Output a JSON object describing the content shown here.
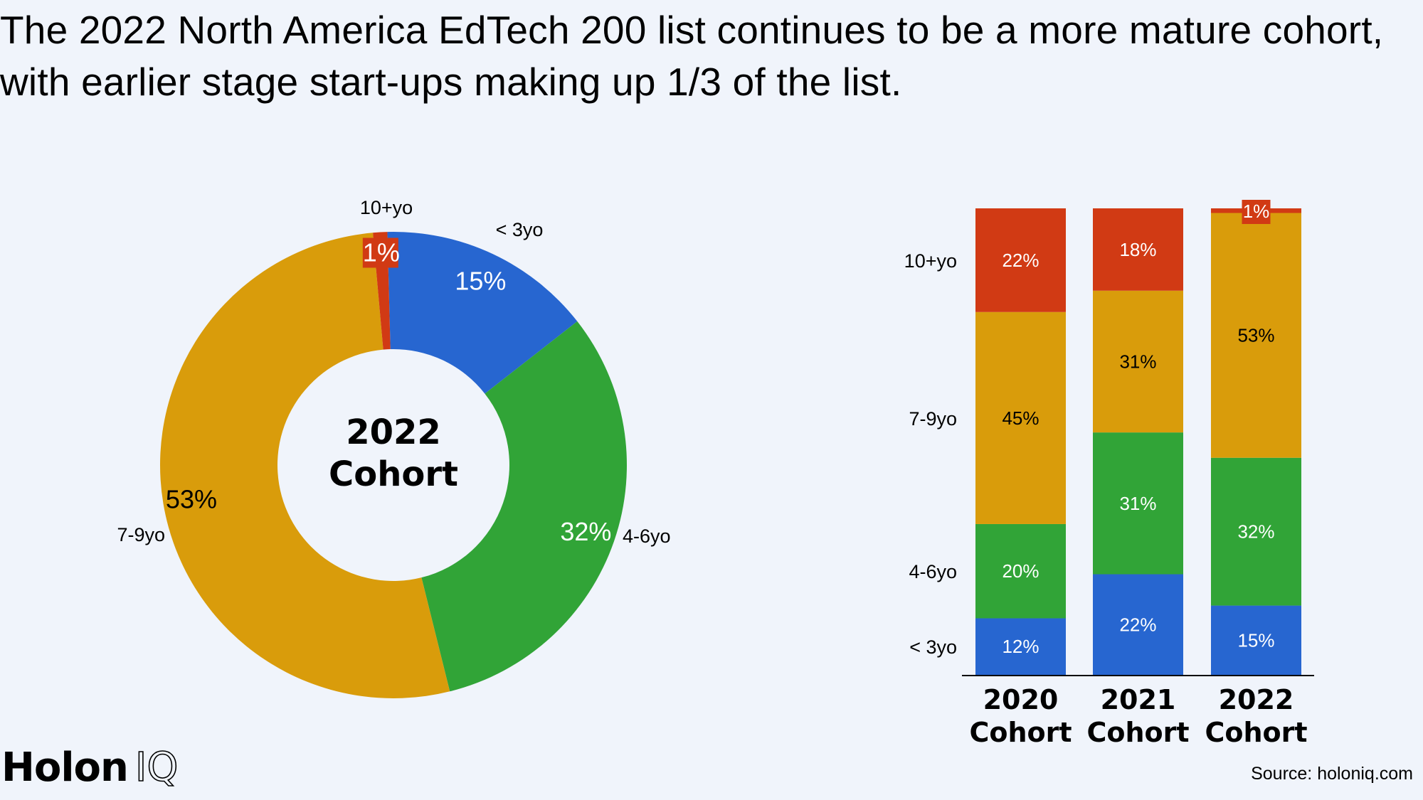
{
  "headline": "The 2022 North America EdTech 200 list continues to be a more mature cohort, with earlier stage start-ups making up 1/3 of the list.",
  "logo": {
    "holon": "Holon",
    "iq": "IQ"
  },
  "source": "Source: holoniq.com",
  "colors": {
    "lt3": "#2766d0",
    "y4to6": "#31a437",
    "y7to9": "#d99c0b",
    "y10plus": "#d13a14",
    "background": "#f0f4fb"
  },
  "chart_data": [
    {
      "type": "pie",
      "variant": "donut",
      "center_label": [
        "2022",
        "Cohort"
      ],
      "slices": [
        {
          "label": "< 3yo",
          "value": 15,
          "value_label": "15%",
          "color": "#2766d0"
        },
        {
          "label": "4-6yo",
          "value": 32,
          "value_label": "32%",
          "color": "#31a437"
        },
        {
          "label": "7-9yo",
          "value": 53,
          "value_label": "53%",
          "color": "#d99c0b"
        },
        {
          "label": "10+yo",
          "value": 1,
          "value_label": "1%",
          "color": "#d13a14"
        }
      ]
    },
    {
      "type": "bar",
      "stacked": true,
      "normalized": true,
      "categories": [
        [
          "2020",
          "Cohort"
        ],
        [
          "2021",
          "Cohort"
        ],
        [
          "2022",
          "Cohort"
        ]
      ],
      "row_labels": [
        "10+yo",
        "7-9yo",
        "4-6yo",
        "< 3yo"
      ],
      "series": [
        {
          "name": "< 3yo",
          "color": "#2766d0",
          "values": [
            12,
            22,
            15
          ],
          "value_labels": [
            "12%",
            "22%",
            "15%"
          ]
        },
        {
          "name": "4-6yo",
          "color": "#31a437",
          "values": [
            20,
            31,
            32
          ],
          "value_labels": [
            "20%",
            "31%",
            "32%"
          ]
        },
        {
          "name": "7-9yo",
          "color": "#d99c0b",
          "values": [
            45,
            31,
            53
          ],
          "value_labels": [
            "45%",
            "31%",
            "53%"
          ]
        },
        {
          "name": "10+yo",
          "color": "#d13a14",
          "values": [
            22,
            18,
            1
          ],
          "value_labels": [
            "22%",
            "18%",
            "1%"
          ]
        }
      ]
    }
  ]
}
